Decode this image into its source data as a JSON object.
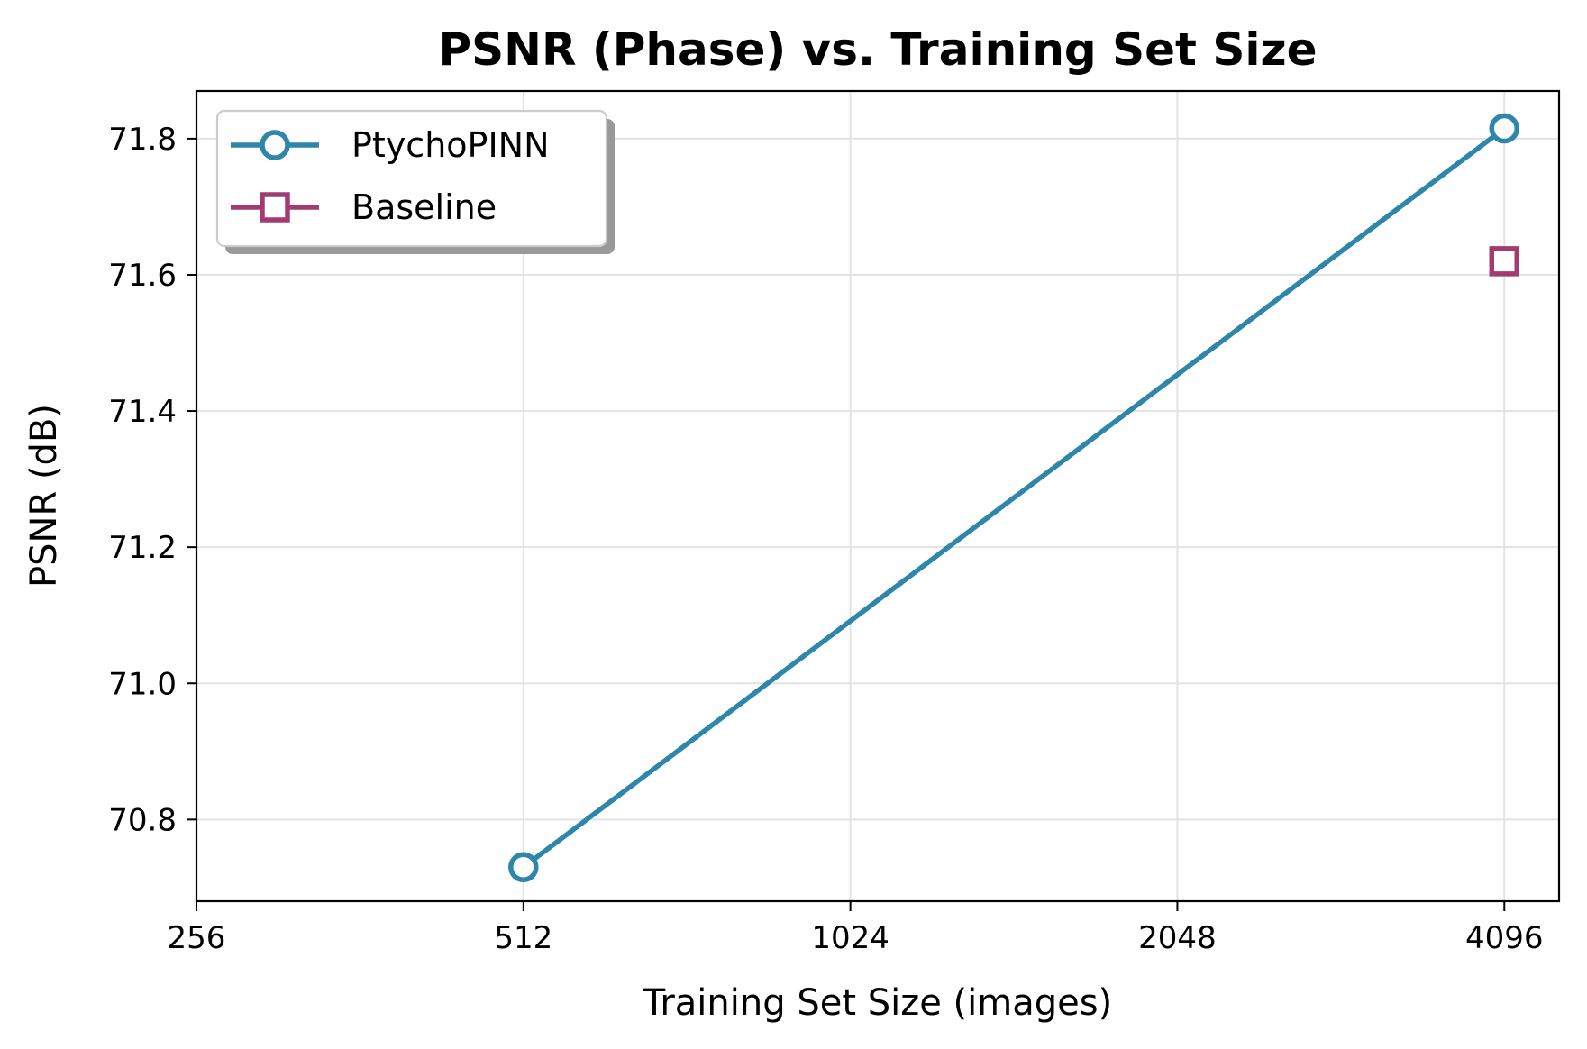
{
  "chart_data": {
    "type": "line",
    "title": "PSNR (Phase) vs. Training Set Size",
    "xlabel": "Training Set Size (images)",
    "ylabel": "PSNR (dB)",
    "x_scale": "log2",
    "xlim": [
      256,
      4600
    ],
    "ylim": [
      70.68,
      71.87
    ],
    "x_ticks": [
      256,
      512,
      1024,
      2048,
      4096
    ],
    "x_tick_labels": [
      "256",
      "512",
      "1024",
      "2048",
      "4096"
    ],
    "y_ticks": [
      70.8,
      71.0,
      71.2,
      71.4,
      71.6,
      71.8
    ],
    "y_tick_labels": [
      "70.8",
      "71.0",
      "71.2",
      "71.4",
      "71.6",
      "71.8"
    ],
    "grid": true,
    "legend_position": "top-left",
    "series": [
      {
        "name": "PtychoPINN",
        "color": "#2e86ab",
        "marker": "circle",
        "line": true,
        "points": [
          {
            "x": 512,
            "y": 70.73
          },
          {
            "x": 4096,
            "y": 71.815
          }
        ]
      },
      {
        "name": "Baseline",
        "color": "#a23b72",
        "marker": "square",
        "line": false,
        "points": [
          {
            "x": 4096,
            "y": 71.62
          }
        ]
      }
    ]
  }
}
